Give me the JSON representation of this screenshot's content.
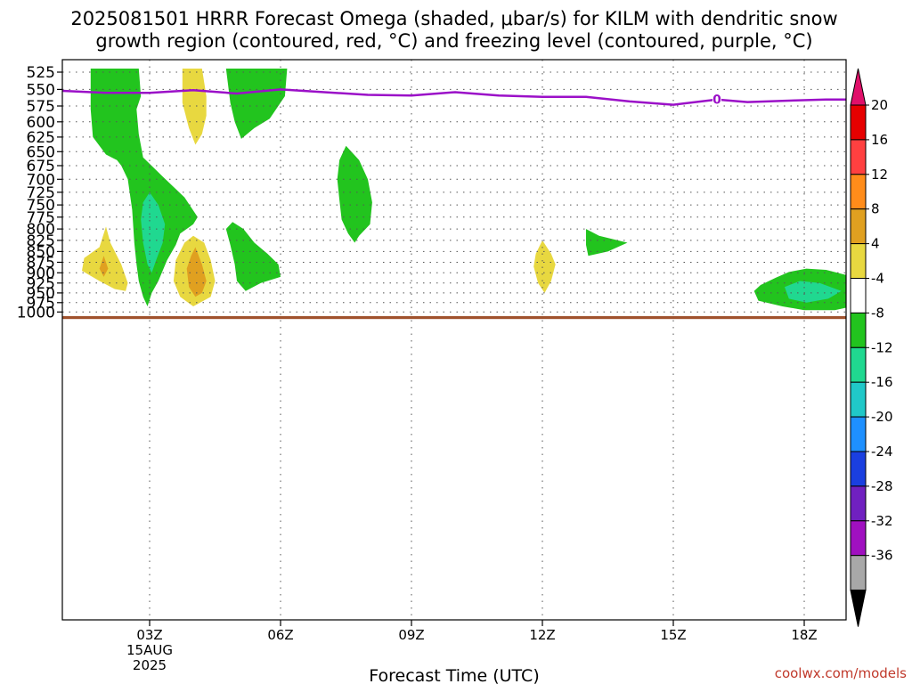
{
  "chart_data": {
    "type": "heatmap",
    "title_line1": "2025081501 HRRR Forecast Omega (shaded, μbar/s) for KILM with dendritic snow",
    "title_line2": "growth region (contoured, red, °C) and freezing level (contoured, purple, °C)",
    "xlabel": "Forecast Time (UTC)",
    "ylabel": "",
    "credit": "coolwx.com/models",
    "x_ticks": [
      {
        "hour": 3,
        "label": "03Z",
        "sub1": "15AUG",
        "sub2": "2025"
      },
      {
        "hour": 6,
        "label": "06Z",
        "sub1": "",
        "sub2": ""
      },
      {
        "hour": 9,
        "label": "09Z",
        "sub1": "",
        "sub2": ""
      },
      {
        "hour": 12,
        "label": "12Z",
        "sub1": "",
        "sub2": ""
      },
      {
        "hour": 15,
        "label": "15Z",
        "sub1": "",
        "sub2": ""
      },
      {
        "hour": 18,
        "label": "18Z",
        "sub1": "",
        "sub2": ""
      }
    ],
    "xlim_hours": [
      1,
      19
    ],
    "y_ticks": [
      525,
      550,
      575,
      600,
      625,
      650,
      675,
      700,
      725,
      750,
      775,
      800,
      825,
      850,
      875,
      900,
      925,
      950,
      975,
      1000
    ],
    "y_unit": "hPa",
    "grid": true,
    "colorbar": {
      "labels": [
        "20",
        "16",
        "12",
        "8",
        "4",
        "-4",
        "-8",
        "-12",
        "-16",
        "-20",
        "-24",
        "-28",
        "-32",
        "-36"
      ],
      "colors": [
        "#e60000",
        "#ff4040",
        "#ff8c1a",
        "#e0a020",
        "#e8d840",
        "#ffffff",
        "#22c41e",
        "#20d890",
        "#20c8c8",
        "#1e90ff",
        "#1a3fe0",
        "#7020c0",
        "#a010c0",
        "#a8a8a8"
      ],
      "top_arrow_color": "#e0106a",
      "bottom_arrow_color": "#000000"
    },
    "freezing_level": {
      "color": "#9b10c8",
      "contour_label": "0",
      "label_hour": 16,
      "points": [
        [
          1,
          552
        ],
        [
          2,
          555
        ],
        [
          3,
          555
        ],
        [
          4,
          551
        ],
        [
          5,
          556
        ],
        [
          6,
          550
        ],
        [
          7,
          554
        ],
        [
          8,
          558
        ],
        [
          9,
          559
        ],
        [
          10,
          554
        ],
        [
          11,
          559
        ],
        [
          12,
          561
        ],
        [
          13,
          561
        ],
        [
          14,
          568
        ],
        [
          15,
          573
        ],
        [
          16,
          565
        ],
        [
          16.7,
          569
        ],
        [
          17.5,
          567
        ],
        [
          18.5,
          565
        ],
        [
          19,
          565
        ]
      ]
    },
    "surface_bar": {
      "color": "#a0522d",
      "pressure_top": 1011,
      "pressure_bottom": 1019
    },
    "omega_regions": [
      {
        "value": "-4",
        "color": "#22c41e",
        "points": [
          [
            1.65,
            520
          ],
          [
            2.75,
            520
          ],
          [
            2.8,
            560
          ],
          [
            2.7,
            580
          ],
          [
            2.75,
            620
          ],
          [
            2.85,
            660
          ],
          [
            3.3,
            695
          ],
          [
            3.8,
            735
          ],
          [
            4.1,
            775
          ],
          [
            4.0,
            790
          ],
          [
            3.7,
            810
          ],
          [
            3.6,
            835
          ],
          [
            3.4,
            870
          ],
          [
            3.2,
            920
          ],
          [
            3.05,
            950
          ],
          [
            2.95,
            985
          ],
          [
            2.85,
            960
          ],
          [
            2.75,
            920
          ],
          [
            2.7,
            880
          ],
          [
            2.65,
            830
          ],
          [
            2.6,
            760
          ],
          [
            2.5,
            700
          ],
          [
            2.35,
            675
          ],
          [
            2.25,
            665
          ],
          [
            2.0,
            655
          ],
          [
            1.7,
            625
          ],
          [
            1.65,
            580
          ]
        ]
      },
      {
        "value": "-4",
        "color": "#22c41e",
        "points": [
          [
            4.75,
            520
          ],
          [
            6.15,
            520
          ],
          [
            6.1,
            560
          ],
          [
            5.75,
            595
          ],
          [
            5.4,
            610
          ],
          [
            5.1,
            628
          ],
          [
            4.95,
            600
          ],
          [
            4.85,
            570
          ]
        ]
      },
      {
        "value": "-4",
        "color": "#22c41e",
        "points": [
          [
            7.5,
            640
          ],
          [
            7.8,
            665
          ],
          [
            8.0,
            700
          ],
          [
            8.1,
            745
          ],
          [
            8.05,
            790
          ],
          [
            7.8,
            815
          ],
          [
            7.7,
            830
          ],
          [
            7.55,
            810
          ],
          [
            7.4,
            780
          ],
          [
            7.35,
            740
          ],
          [
            7.3,
            700
          ],
          [
            7.35,
            665
          ]
        ]
      },
      {
        "value": "-4",
        "color": "#22c41e",
        "points": [
          [
            4.9,
            785
          ],
          [
            5.15,
            800
          ],
          [
            5.4,
            830
          ],
          [
            5.7,
            855
          ],
          [
            5.95,
            880
          ],
          [
            6.0,
            910
          ],
          [
            5.55,
            925
          ],
          [
            5.2,
            945
          ],
          [
            5.0,
            920
          ],
          [
            4.95,
            880
          ],
          [
            4.85,
            835
          ],
          [
            4.75,
            800
          ]
        ]
      },
      {
        "value": "-4",
        "color": "#22c41e",
        "points": [
          [
            13.0,
            800
          ],
          [
            13.3,
            815
          ],
          [
            13.95,
            830
          ],
          [
            13.5,
            850
          ],
          [
            13.05,
            860
          ],
          [
            13.0,
            835
          ]
        ]
      },
      {
        "value": "-4",
        "color": "#22c41e",
        "points": [
          [
            17.0,
            930
          ],
          [
            17.35,
            912
          ],
          [
            17.65,
            898
          ],
          [
            18.05,
            890
          ],
          [
            18.5,
            893
          ],
          [
            18.95,
            905
          ],
          [
            19.1,
            930
          ],
          [
            19.1,
            985
          ],
          [
            18.7,
            995
          ],
          [
            18.0,
            995
          ],
          [
            17.5,
            985
          ],
          [
            16.95,
            970
          ],
          [
            16.85,
            945
          ]
        ]
      },
      {
        "value": "-8",
        "color": "#20d890",
        "points": [
          [
            3.0,
            725
          ],
          [
            3.2,
            750
          ],
          [
            3.35,
            790
          ],
          [
            3.3,
            830
          ],
          [
            3.15,
            870
          ],
          [
            3.05,
            900
          ],
          [
            2.95,
            880
          ],
          [
            2.85,
            830
          ],
          [
            2.8,
            780
          ],
          [
            2.85,
            745
          ]
        ]
      },
      {
        "value": "-8",
        "color": "#20d890",
        "points": [
          [
            17.55,
            935
          ],
          [
            17.9,
            920
          ],
          [
            18.35,
            925
          ],
          [
            18.85,
            945
          ],
          [
            18.55,
            965
          ],
          [
            18.05,
            975
          ],
          [
            17.65,
            965
          ]
        ]
      },
      {
        "value": "4",
        "color": "#e8d840",
        "points": [
          [
            3.75,
            520
          ],
          [
            4.2,
            520
          ],
          [
            4.3,
            560
          ],
          [
            4.3,
            590
          ],
          [
            4.2,
            620
          ],
          [
            4.05,
            638
          ],
          [
            3.9,
            610
          ],
          [
            3.75,
            570
          ]
        ]
      },
      {
        "value": "4",
        "color": "#e8d840",
        "points": [
          [
            2.0,
            795
          ],
          [
            2.1,
            830
          ],
          [
            2.35,
            880
          ],
          [
            2.5,
            925
          ],
          [
            2.45,
            945
          ],
          [
            2.2,
            940
          ],
          [
            1.85,
            920
          ],
          [
            1.45,
            895
          ],
          [
            1.5,
            865
          ],
          [
            1.85,
            840
          ]
        ]
      },
      {
        "value": "4",
        "color": "#e8d840",
        "points": [
          [
            4.0,
            815
          ],
          [
            4.25,
            830
          ],
          [
            4.4,
            870
          ],
          [
            4.5,
            920
          ],
          [
            4.4,
            960
          ],
          [
            4.0,
            985
          ],
          [
            3.7,
            960
          ],
          [
            3.55,
            920
          ],
          [
            3.6,
            870
          ],
          [
            3.8,
            830
          ]
        ]
      },
      {
        "value": "4",
        "color": "#e8d840",
        "points": [
          [
            12.0,
            825
          ],
          [
            12.2,
            855
          ],
          [
            12.3,
            880
          ],
          [
            12.2,
            920
          ],
          [
            12.05,
            950
          ],
          [
            11.9,
            925
          ],
          [
            11.8,
            885
          ],
          [
            11.85,
            855
          ]
        ]
      },
      {
        "value": "8",
        "color": "#e0a020",
        "points": [
          [
            4.05,
            840
          ],
          [
            4.2,
            880
          ],
          [
            4.3,
            920
          ],
          [
            4.2,
            950
          ],
          [
            4.05,
            960
          ],
          [
            3.9,
            935
          ],
          [
            3.85,
            890
          ],
          [
            3.95,
            860
          ]
        ]
      },
      {
        "value": "8",
        "color": "#e0a020",
        "points": [
          [
            1.95,
            860
          ],
          [
            2.05,
            890
          ],
          [
            1.95,
            910
          ],
          [
            1.85,
            890
          ]
        ]
      }
    ]
  }
}
